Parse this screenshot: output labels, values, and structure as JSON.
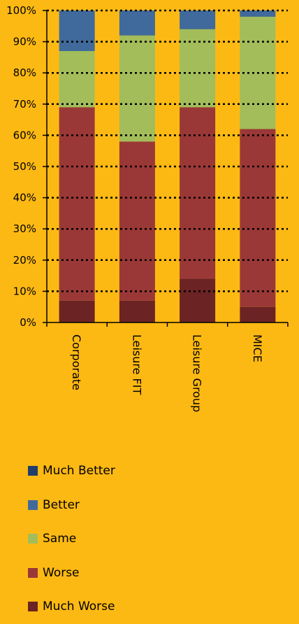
{
  "chart_data": {
    "type": "bar",
    "stacked": true,
    "categories": [
      "Corporate",
      "Leisure FIT",
      "Leisure Group",
      "MICE"
    ],
    "series": [
      {
        "name": "Much Worse",
        "color": "#6B2324",
        "values": [
          7,
          7,
          14,
          5
        ]
      },
      {
        "name": "Worse",
        "color": "#9A3837",
        "values": [
          62,
          51,
          55,
          57
        ]
      },
      {
        "name": "Same",
        "color": "#A2BD5A",
        "values": [
          18,
          34,
          25,
          36
        ]
      },
      {
        "name": "Better",
        "color": "#3F6A9B",
        "values": [
          13,
          8,
          6,
          2
        ]
      },
      {
        "name": "Much Better",
        "color": "#1F3E6A",
        "values": [
          0,
          0,
          0,
          0
        ]
      }
    ],
    "ylim": [
      0,
      100
    ],
    "yticks": [
      "0%",
      "10%",
      "20%",
      "30%",
      "40%",
      "50%",
      "60%",
      "70%",
      "80%",
      "90%",
      "100%"
    ],
    "grid": true,
    "legend_position": "bottom"
  },
  "legend": [
    {
      "name": "Much Better",
      "color": "#1F3E6A"
    },
    {
      "name": "Better",
      "color": "#3F6A9B"
    },
    {
      "name": "Same",
      "color": "#A2BD5A"
    },
    {
      "name": "Worse",
      "color": "#9A3837"
    },
    {
      "name": "Much Worse",
      "color": "#6B2324"
    }
  ]
}
